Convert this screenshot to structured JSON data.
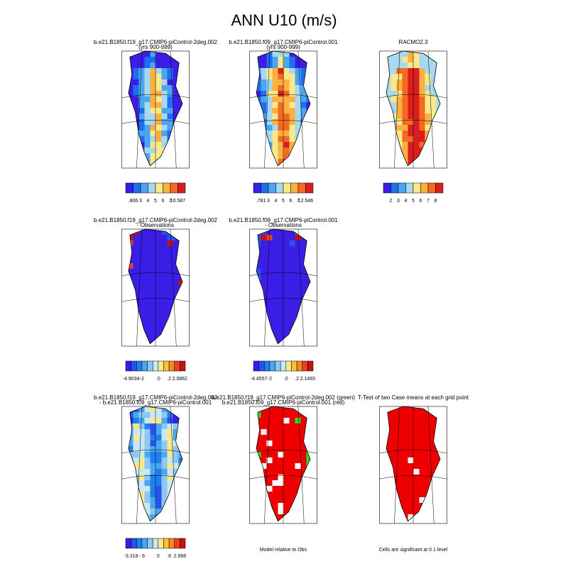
{
  "title": "ANN U10 (m/s)",
  "panels": [
    {
      "title": [
        "b.e21.B1850.f19_g17.CMIP6-piControl-2deg.002",
        "(yrs 900-999)"
      ],
      "colorbar": {
        "colors": [
          "#3a1ee6",
          "#1f6ef0",
          "#4aa6f0",
          "#a6d8f0",
          "#fbe88a",
          "#fbb040",
          "#f36a20",
          "#d81e1e"
        ],
        "labels": [
          ".806",
          "3",
          "4",
          "5",
          "6",
          "7",
          "10.587"
        ]
      }
    },
    {
      "title": [
        "b.e21.B1850.f09_g17.CMIP6-piControl.001",
        "(yrs 900-999)"
      ],
      "colorbar": {
        "colors": [
          "#3a1ee6",
          "#1f6ef0",
          "#4aa6f0",
          "#a6d8f0",
          "#fbe88a",
          "#fbb040",
          "#f36a20",
          "#d81e1e"
        ],
        "labels": [
          ".781",
          "3",
          "4",
          "5",
          "6",
          "7",
          "12.546"
        ]
      }
    },
    {
      "title": [
        "RACMO2.3"
      ],
      "colorbar": {
        "colors": [
          "#3a1ee6",
          "#1f6ef0",
          "#4aa6f0",
          "#a6d8f0",
          "#fbe88a",
          "#fbb040",
          "#f36a20",
          "#d81e1e"
        ],
        "labels": [
          "2",
          "3",
          "4",
          "5",
          "6",
          "7",
          "8"
        ]
      }
    },
    {
      "title": [
        "b.e21.B1850.f19_g17.CMIP6-piControl-2deg.002",
        "- Observations"
      ],
      "colorbar": {
        "colors": [
          "#3a1ee6",
          "#2a50f0",
          "#1f7ef0",
          "#4aa6f0",
          "#8cc8f0",
          "#c8e8f4",
          "#fbe88a",
          "#fbc040",
          "#f38a20",
          "#e84020",
          "#c81010"
        ],
        "labels": [
          "-4.9034",
          "-2",
          ".0",
          ".2",
          "2.0862"
        ]
      }
    },
    {
      "title": [
        "b.e21.B1850.f09_g17.CMIP6-piControl.001",
        "- Observations"
      ],
      "colorbar": {
        "colors": [
          "#3a1ee6",
          "#2a50f0",
          "#1f7ef0",
          "#4aa6f0",
          "#8cc8f0",
          "#c8e8f4",
          "#fbe88a",
          "#fbc040",
          "#f38a20",
          "#e84020",
          "#c81010"
        ],
        "labels": [
          "-4.4557",
          "-2",
          ".0",
          ".2",
          "2.1493"
        ]
      }
    },
    {
      "title": [
        "b.e21.B1850.f19_g17.CMIP6-piControl-2deg.002",
        "- b.e21.B1850.f09_g17.CMIP6-piControl.001"
      ],
      "colorbar": {
        "colors": [
          "#3a1ee6",
          "#2a50f0",
          "#1f7ef0",
          "#4aa6f0",
          "#8cc8f0",
          "#c8e8f4",
          "#fbe88a",
          "#fbc040",
          "#f38a20",
          "#e84020",
          "#c81010"
        ],
        "labels": [
          "-3.318",
          "-.6",
          "0",
          ".6",
          "2.968"
        ]
      }
    },
    {
      "title": [
        "b.e21.B1850.f19_g17.CMIP6-piControl-2deg.002 (green)",
        "b.e21.B1850.f09_g17.CMIP6-piControl.001 (red)"
      ],
      "note": "Model relative to Obs"
    },
    {
      "title": [
        "T-Test of two Case means at each grid point"
      ],
      "note": "Cells are significant at 0.1 level"
    }
  ]
}
